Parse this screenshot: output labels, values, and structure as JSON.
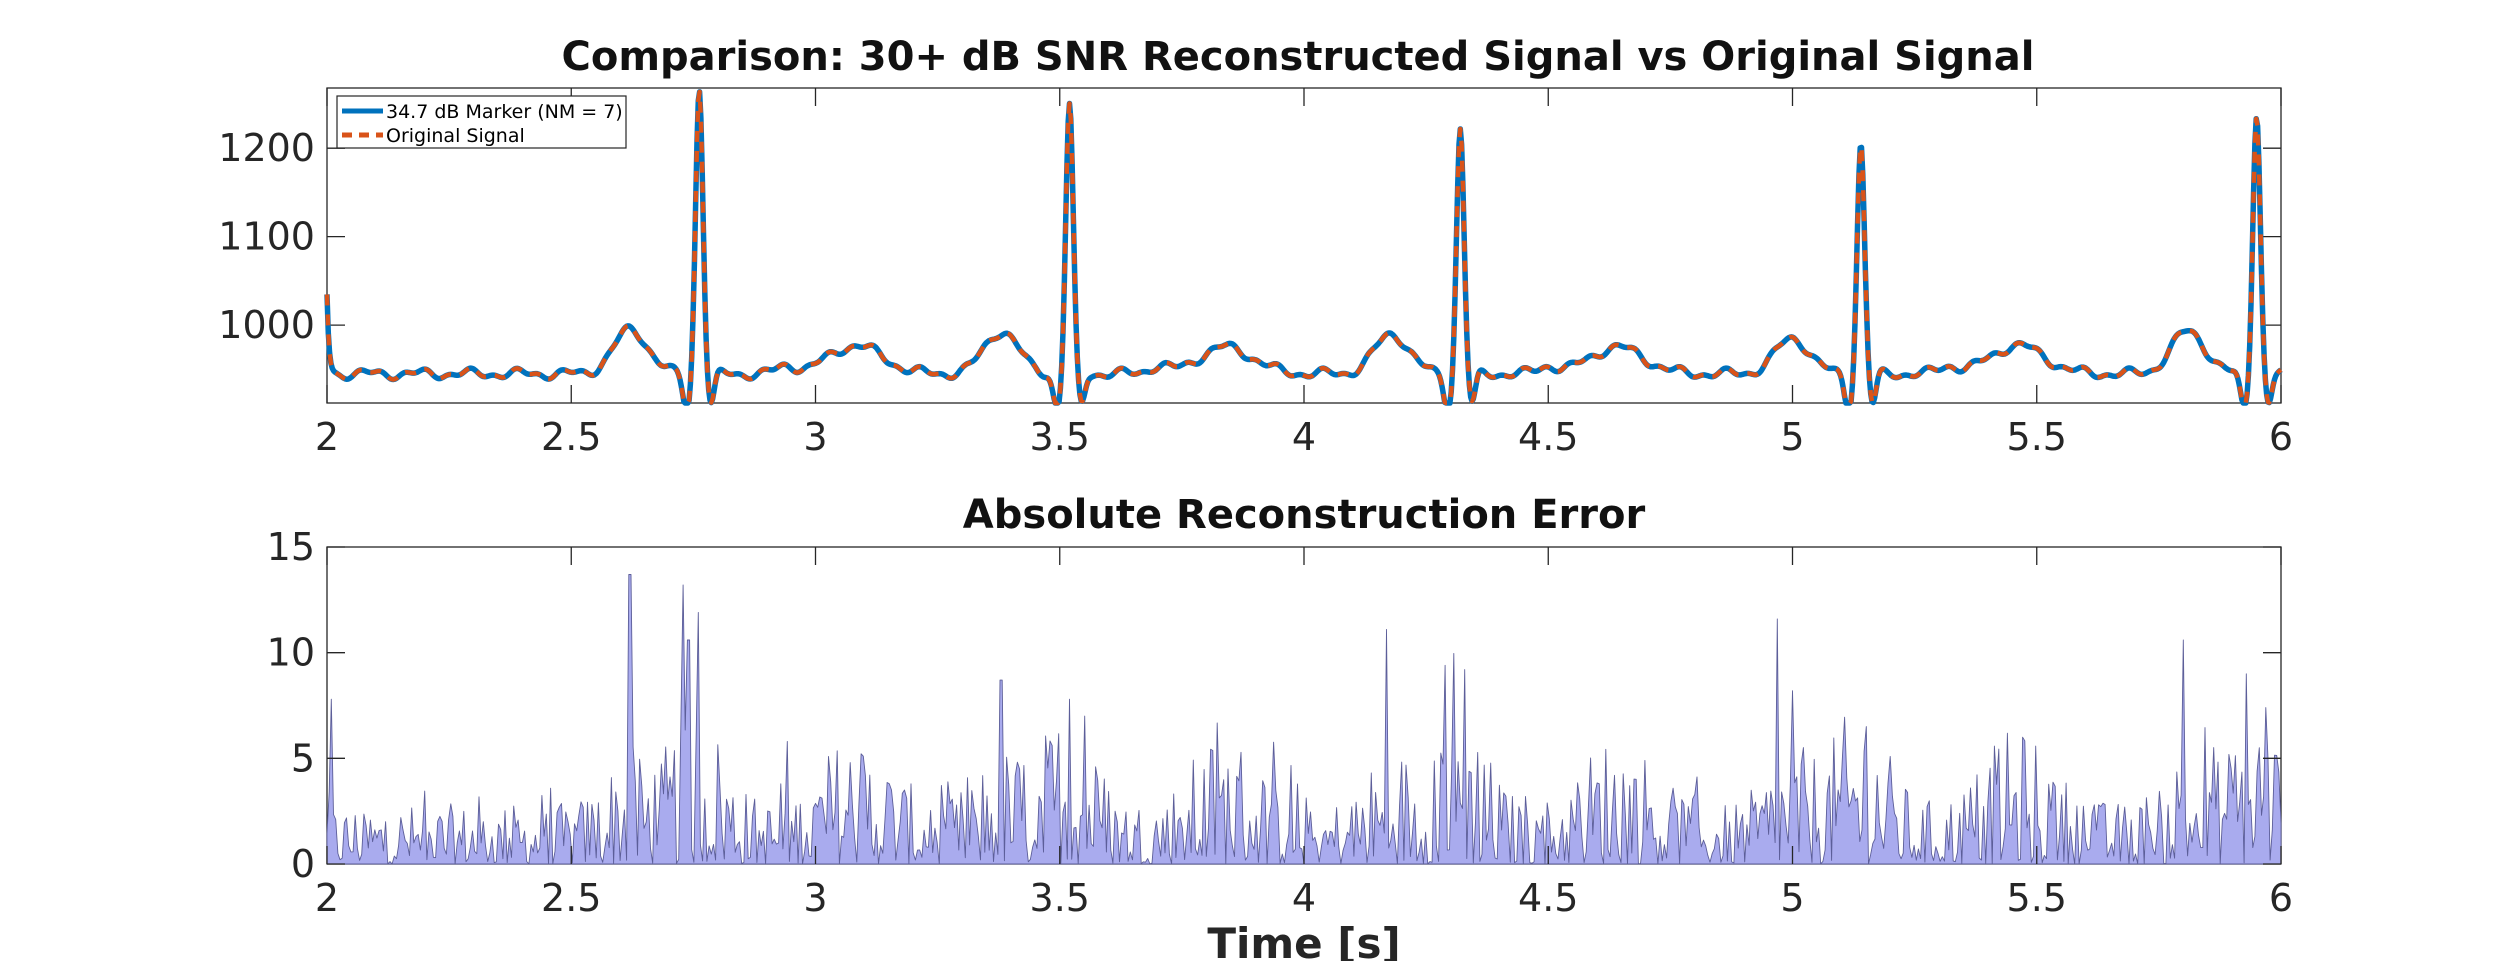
{
  "chart_data": [
    {
      "type": "line",
      "title": "Comparison: 30+ dB SNR Reconstructed Signal vs Original Signal",
      "xlabel": "",
      "ylabel": "",
      "xlim": [
        2,
        6
      ],
      "ylim": [
        912,
        1268
      ],
      "x_ticks": [
        2,
        2.5,
        3,
        3.5,
        4,
        4.5,
        5,
        5.5,
        6
      ],
      "x_tick_labels": [
        "2",
        "2.5",
        "3",
        "3.5",
        "4",
        "4.5",
        "5",
        "5.5",
        "6"
      ],
      "y_ticks": [
        1000,
        1100,
        1200
      ],
      "y_tick_labels": [
        "1000",
        "1100",
        "1200"
      ],
      "grid": false,
      "legend_position": "top-left",
      "beats": [
        {
          "r": 2.762,
          "r_peak": 1268,
          "p_amp": 32,
          "t_amp": 50
        },
        {
          "r": 3.52,
          "r_peak": 1248,
          "p_amp": 30,
          "t_amp": 48
        },
        {
          "r": 4.32,
          "r_peak": 1222,
          "p_amp": 30,
          "t_amp": 45
        },
        {
          "r": 5.14,
          "r_peak": 1205,
          "p_amp": 32,
          "t_amp": 40
        },
        {
          "r": 5.95,
          "r_peak": 1240,
          "p_amp": 30,
          "t_amp": 48
        }
      ],
      "baseline": 945,
      "start_value": 1035,
      "series": [
        {
          "name": "34.7 dB Marker (NM = 7)",
          "color": "#0072BD",
          "style": "solid"
        },
        {
          "name": "Original Signal",
          "color": "#D95319",
          "style": "dashed"
        }
      ]
    },
    {
      "type": "area",
      "title": "Absolute Reconstruction Error",
      "xlabel": "Time [s]",
      "ylabel": "",
      "xlim": [
        2,
        6
      ],
      "ylim": [
        0,
        15
      ],
      "x_ticks": [
        2,
        2.5,
        3,
        3.5,
        4,
        4.5,
        5,
        5.5,
        6
      ],
      "x_tick_labels": [
        "2",
        "2.5",
        "3",
        "3.5",
        "4",
        "4.5",
        "5",
        "5.5",
        "6"
      ],
      "y_ticks": [
        0,
        5,
        10,
        15
      ],
      "y_tick_labels": [
        "0",
        "5",
        "10",
        "15"
      ],
      "grid": false,
      "fill_color": "#A9ABEE",
      "edge_color": "#5C5E99",
      "peaks": [
        {
          "x": 2.01,
          "y": 7.8
        },
        {
          "x": 2.62,
          "y": 13.7
        },
        {
          "x": 2.73,
          "y": 13.2
        },
        {
          "x": 2.76,
          "y": 11.9
        },
        {
          "x": 2.74,
          "y": 10.6
        },
        {
          "x": 3.38,
          "y": 8.7
        },
        {
          "x": 3.52,
          "y": 7.8
        },
        {
          "x": 3.55,
          "y": 7.0
        },
        {
          "x": 4.17,
          "y": 11.1
        },
        {
          "x": 4.29,
          "y": 9.4
        },
        {
          "x": 4.33,
          "y": 9.2
        },
        {
          "x": 4.97,
          "y": 11.6
        },
        {
          "x": 5.0,
          "y": 8.2
        },
        {
          "x": 5.15,
          "y": 6.5
        },
        {
          "x": 5.8,
          "y": 10.6
        },
        {
          "x": 5.93,
          "y": 9.0
        },
        {
          "x": 5.97,
          "y": 7.4
        }
      ]
    }
  ]
}
